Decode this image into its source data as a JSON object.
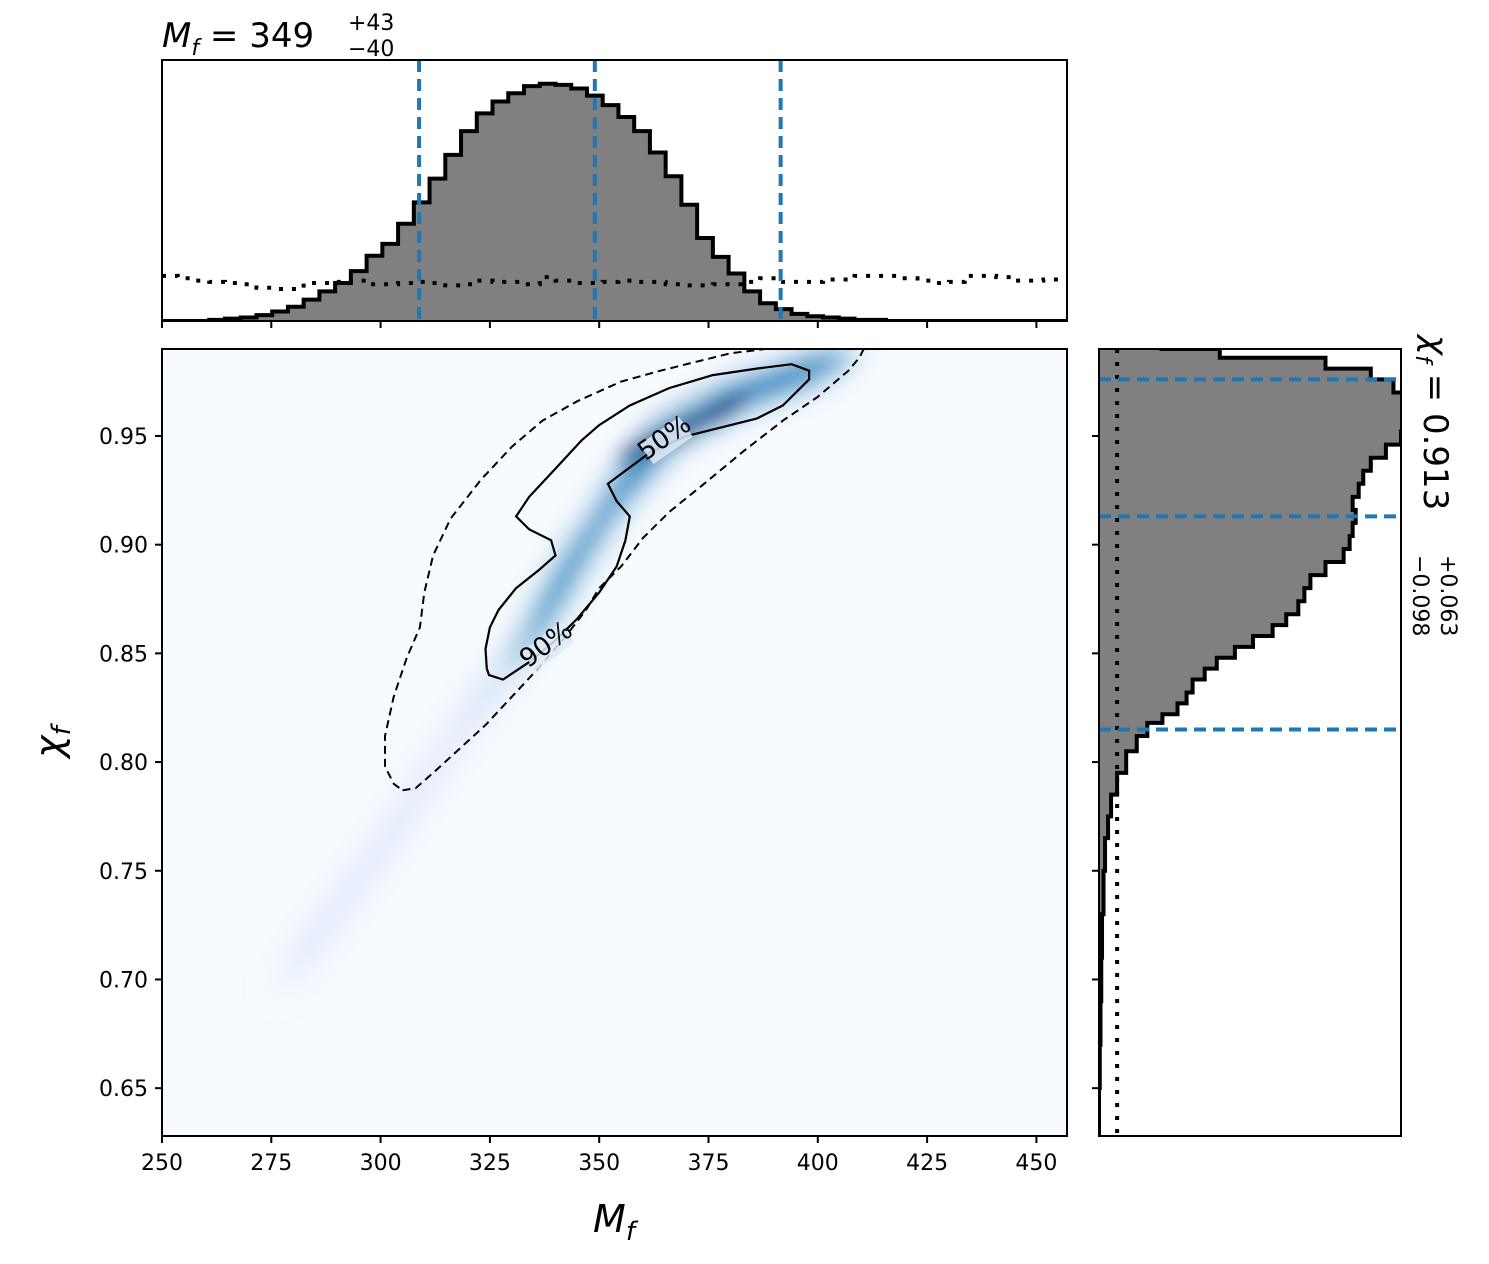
{
  "chart_data": [
    {
      "type": "histogram",
      "panel": "top-marginal",
      "variable": "M_f",
      "title": {
        "symbol": "M",
        "subscript": "f",
        "median": "349",
        "plus": "+43",
        "minus": "−40"
      },
      "xlim": [
        250,
        457
      ],
      "bin_edges_start": 250,
      "bin_width": 3.6,
      "posterior_counts": [
        0,
        0,
        0,
        1,
        2,
        3,
        5,
        8,
        12,
        18,
        25,
        32,
        42,
        55,
        65,
        82,
        100,
        120,
        140,
        160,
        175,
        185,
        192,
        198,
        200,
        199,
        196,
        190,
        182,
        172,
        160,
        142,
        122,
        98,
        70,
        54,
        40,
        25,
        15,
        10,
        6,
        4,
        3,
        2,
        1,
        1,
        0,
        0,
        0,
        0,
        0,
        0,
        0,
        0,
        0,
        0,
        0,
        0
      ],
      "prior_counts": [
        38,
        36,
        34,
        33,
        32,
        31,
        28,
        27,
        27,
        32,
        32,
        33,
        34,
        31,
        31,
        32,
        33,
        32,
        30,
        31,
        34,
        33,
        33,
        31,
        37,
        34,
        32,
        32,
        33,
        34,
        33,
        33,
        31,
        30,
        30,
        31,
        31,
        33,
        36,
        33,
        33,
        33,
        35,
        35,
        38,
        38,
        38,
        36,
        34,
        32,
        33,
        38,
        38,
        37,
        34,
        34,
        35,
        35
      ],
      "quantile_lines": [
        308.8,
        349.0,
        391.5
      ],
      "ylim": [
        0,
        220
      ]
    },
    {
      "type": "heatmap",
      "panel": "joint",
      "xlabel": {
        "symbol": "M",
        "subscript": "f"
      },
      "ylabel": {
        "symbol": "χ",
        "subscript": "f"
      },
      "xlim": [
        250,
        457
      ],
      "ylim": [
        0.628,
        0.99
      ],
      "xticks": [
        "250",
        "275",
        "300",
        "325",
        "350",
        "375",
        "400",
        "425",
        "450"
      ],
      "xtick_values": [
        250,
        275,
        300,
        325,
        350,
        375,
        400,
        425,
        450
      ],
      "yticks": [
        "0.65",
        "0.70",
        "0.75",
        "0.80",
        "0.85",
        "0.90",
        "0.95"
      ],
      "ytick_values": [
        0.65,
        0.7,
        0.75,
        0.8,
        0.85,
        0.9,
        0.95
      ],
      "colormap": "Blues",
      "density_ridge": [
        [
          280,
          0.705
        ],
        [
          300,
          0.76
        ],
        [
          320,
          0.82
        ],
        [
          335,
          0.86
        ],
        [
          345,
          0.895
        ],
        [
          355,
          0.925
        ],
        [
          365,
          0.95
        ],
        [
          380,
          0.967
        ],
        [
          395,
          0.978
        ],
        [
          405,
          0.986
        ]
      ],
      "contour_50": [
        [
          324.8,
          0.84
        ],
        [
          328,
          0.838
        ],
        [
          334,
          0.846
        ],
        [
          340,
          0.856
        ],
        [
          345,
          0.866
        ],
        [
          350,
          0.878
        ],
        [
          354,
          0.89
        ],
        [
          356,
          0.902
        ],
        [
          357,
          0.913
        ],
        [
          354,
          0.92
        ],
        [
          352,
          0.928
        ],
        [
          356,
          0.934
        ],
        [
          362,
          0.943
        ],
        [
          370,
          0.95
        ],
        [
          378,
          0.954
        ],
        [
          386,
          0.958
        ],
        [
          392,
          0.964
        ],
        [
          395,
          0.97
        ],
        [
          398,
          0.976
        ],
        [
          398,
          0.98
        ],
        [
          394,
          0.983
        ],
        [
          386,
          0.981
        ],
        [
          376,
          0.978
        ],
        [
          366,
          0.972
        ],
        [
          357,
          0.964
        ],
        [
          350,
          0.955
        ],
        [
          346,
          0.948
        ],
        [
          340,
          0.935
        ],
        [
          334,
          0.922
        ],
        [
          331,
          0.913
        ],
        [
          334,
          0.907
        ],
        [
          339,
          0.902
        ],
        [
          340,
          0.895
        ],
        [
          336,
          0.888
        ],
        [
          331,
          0.88
        ],
        [
          327,
          0.87
        ],
        [
          325,
          0.862
        ],
        [
          324,
          0.852
        ],
        [
          324.3,
          0.843
        ],
        [
          324.8,
          0.84
        ]
      ],
      "contour_90": [
        [
          305,
          0.787
        ],
        [
          308,
          0.788
        ],
        [
          312,
          0.795
        ],
        [
          318,
          0.806
        ],
        [
          324,
          0.817
        ],
        [
          330,
          0.83
        ],
        [
          336,
          0.843
        ],
        [
          342,
          0.857
        ],
        [
          347,
          0.87
        ],
        [
          350,
          0.88
        ],
        [
          355,
          0.89
        ],
        [
          360,
          0.903
        ],
        [
          366,
          0.915
        ],
        [
          374,
          0.928
        ],
        [
          383,
          0.943
        ],
        [
          392,
          0.957
        ],
        [
          400,
          0.968
        ],
        [
          407,
          0.98
        ],
        [
          409.5,
          0.986
        ],
        [
          410.5,
          0.99
        ],
        [
          409,
          0.99
        ],
        [
          388,
          0.99
        ],
        [
          380,
          0.988
        ],
        [
          372,
          0.984
        ],
        [
          364,
          0.98
        ],
        [
          355,
          0.975
        ],
        [
          345,
          0.966
        ],
        [
          337,
          0.957
        ],
        [
          330,
          0.945
        ],
        [
          323,
          0.93
        ],
        [
          316,
          0.912
        ],
        [
          312,
          0.895
        ],
        [
          310,
          0.878
        ],
        [
          309,
          0.862
        ],
        [
          306,
          0.848
        ],
        [
          303,
          0.83
        ],
        [
          301,
          0.812
        ],
        [
          301,
          0.798
        ],
        [
          303,
          0.79
        ],
        [
          305,
          0.787
        ]
      ],
      "contour_labels": [
        {
          "text": "50%",
          "x": 366,
          "y": 0.946,
          "angle": -35
        },
        {
          "text": "90%",
          "x": 339,
          "y": 0.851,
          "angle": -37
        }
      ]
    },
    {
      "type": "histogram",
      "panel": "right-marginal",
      "orientation": "horizontal",
      "variable": "χ_f",
      "title": {
        "symbol": "χ",
        "subscript": "f",
        "median": "0.913",
        "plus": "+0.063",
        "minus": "−0.098"
      },
      "ylim": [
        0.628,
        0.99
      ],
      "posterior_profile": [
        [
          0.628,
          0
        ],
        [
          0.65,
          0.5
        ],
        [
          0.67,
          1
        ],
        [
          0.69,
          1.5
        ],
        [
          0.71,
          2
        ],
        [
          0.73,
          3
        ],
        [
          0.75,
          4
        ],
        [
          0.765,
          6
        ],
        [
          0.775,
          8
        ],
        [
          0.785,
          12
        ],
        [
          0.795,
          18
        ],
        [
          0.805,
          25
        ],
        [
          0.812,
          32
        ],
        [
          0.818,
          42
        ],
        [
          0.822,
          52
        ],
        [
          0.827,
          58
        ],
        [
          0.832,
          62
        ],
        [
          0.838,
          70
        ],
        [
          0.843,
          78
        ],
        [
          0.848,
          90
        ],
        [
          0.853,
          102
        ],
        [
          0.858,
          115
        ],
        [
          0.863,
          124
        ],
        [
          0.868,
          132
        ],
        [
          0.874,
          136
        ],
        [
          0.88,
          140
        ],
        [
          0.886,
          150
        ],
        [
          0.892,
          162
        ],
        [
          0.898,
          166
        ],
        [
          0.904,
          168
        ],
        [
          0.91,
          170
        ],
        [
          0.916,
          168
        ],
        [
          0.922,
          172
        ],
        [
          0.928,
          175
        ],
        [
          0.934,
          180
        ],
        [
          0.94,
          190
        ],
        [
          0.946,
          200
        ],
        [
          0.952,
          205
        ],
        [
          0.958,
          208
        ],
        [
          0.964,
          204
        ],
        [
          0.97,
          195
        ],
        [
          0.976,
          180
        ],
        [
          0.981,
          150
        ],
        [
          0.986,
          80
        ],
        [
          0.99,
          40
        ]
      ],
      "prior_level": 12,
      "quantile_lines": [
        0.815,
        0.913,
        0.976
      ],
      "xlim": [
        0,
        200
      ]
    }
  ],
  "colors": {
    "histogram_fill": "#808080",
    "quantile_line": "#1f77b4",
    "heatmap_low": "#f7fbff",
    "heatmap_high": "#08306b"
  }
}
